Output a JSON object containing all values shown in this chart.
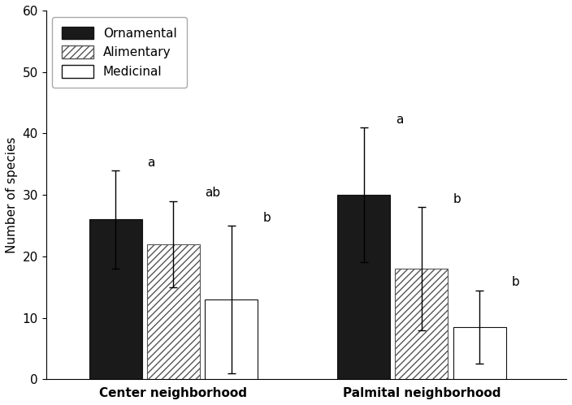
{
  "groups": [
    "Center neighborhood",
    "Palmital neighborhood"
  ],
  "categories": [
    "Ornamental",
    "Alimentary",
    "Medicinal"
  ],
  "values": [
    [
      26,
      22,
      13
    ],
    [
      30,
      18,
      8.5
    ]
  ],
  "errors": [
    [
      8,
      7,
      12
    ],
    [
      11,
      10,
      6
    ]
  ],
  "sig_labels": [
    [
      "a",
      "ab",
      "b"
    ],
    [
      "a",
      "b",
      "b"
    ]
  ],
  "bar_colors": [
    "#1a1a1a",
    "white",
    "white"
  ],
  "bar_hatches": [
    null,
    "////",
    null
  ],
  "bar_edgecolors": [
    "#111111",
    "#555555",
    "#111111"
  ],
  "ylabel": "Number of species",
  "ylim": [
    0,
    60
  ],
  "yticks": [
    0,
    10,
    20,
    30,
    40,
    50,
    60
  ],
  "group_centers": [
    1.5,
    3.0
  ],
  "bar_width": 0.35,
  "background_color": "#ffffff",
  "font_size": 11,
  "sig_fontsize": 11,
  "xtick_fontsize": 11
}
